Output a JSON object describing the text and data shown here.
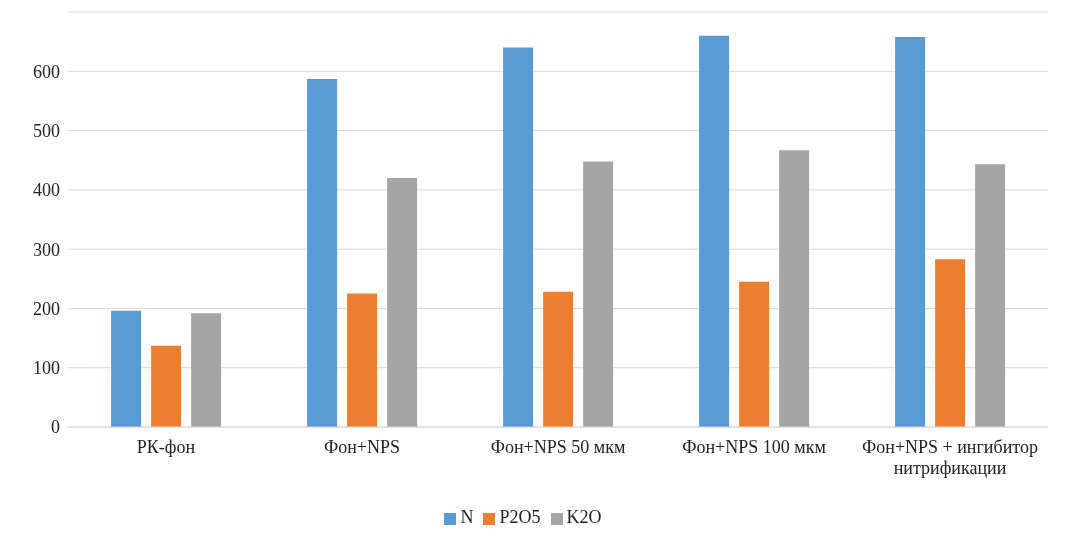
{
  "chart_data": {
    "type": "bar",
    "categories": [
      "РК-фон",
      "Фон+NPS",
      "Фон+NPS 50 мкм",
      "Фон+NPS 100 мкм",
      "Фон+NPS + ингибитор нитрификации"
    ],
    "series": [
      {
        "name": "N",
        "color": "#5b9bd5",
        "values": [
          196,
          587,
          640,
          660,
          658
        ]
      },
      {
        "name": "P2O5",
        "color": "#ed7d31",
        "values": [
          137,
          225,
          228,
          245,
          283
        ]
      },
      {
        "name": "K2O",
        "color": "#a5a5a5",
        "values": [
          192,
          420,
          448,
          467,
          443
        ]
      }
    ],
    "ylim": [
      0,
      700
    ],
    "yticks": [
      0,
      100,
      200,
      300,
      400,
      500,
      600
    ],
    "grid": "y",
    "legend": "bottom"
  }
}
